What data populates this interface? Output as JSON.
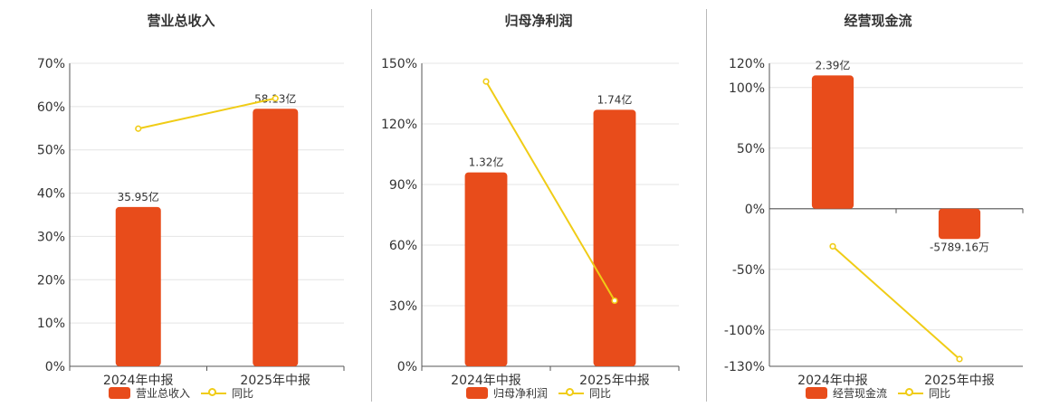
{
  "colors": {
    "bar": "#e84c1b",
    "line": "#f0cc16",
    "axis": "#555555",
    "grid": "#e4e4e4",
    "text": "#333333"
  },
  "legend": {
    "line_label": "同比"
  },
  "chart_data": [
    {
      "type": "bar",
      "title": "营业总收入",
      "categories": [
        "2024年中报",
        "2025年中报"
      ],
      "bar_values": [
        36.8,
        59.5
      ],
      "bar_labels": [
        "35.95亿",
        "58.13亿"
      ],
      "line_values": [
        54.9,
        61.9
      ],
      "ylim": [
        0,
        70
      ],
      "yticks": [
        0,
        10,
        20,
        30,
        40,
        50,
        60,
        70
      ],
      "ytick_labels": [
        "0%",
        "10%",
        "20%",
        "30%",
        "40%",
        "50%",
        "60%",
        "70%"
      ],
      "series": [
        {
          "name": "营业总收入",
          "kind": "bar"
        },
        {
          "name": "同比",
          "kind": "line"
        }
      ]
    },
    {
      "type": "bar",
      "title": "归母净利润",
      "categories": [
        "2024年中报",
        "2025年中报"
      ],
      "bar_values": [
        96,
        127
      ],
      "bar_labels": [
        "1.32亿",
        "1.74亿"
      ],
      "line_values": [
        141,
        32.5
      ],
      "ylim": [
        0,
        150
      ],
      "yticks": [
        0,
        30,
        60,
        90,
        120,
        150
      ],
      "ytick_labels": [
        "0%",
        "30%",
        "60%",
        "90%",
        "120%",
        "150%"
      ],
      "series": [
        {
          "name": "归母净利润",
          "kind": "bar"
        },
        {
          "name": "同比",
          "kind": "line"
        }
      ]
    },
    {
      "type": "bar",
      "title": "经营现金流",
      "categories": [
        "2024年中报",
        "2025年中报"
      ],
      "bar_values": [
        110,
        -25
      ],
      "bar_labels": [
        "2.39亿",
        "-5789.16万"
      ],
      "line_values": [
        -31,
        -124
      ],
      "ylim": [
        -130,
        120
      ],
      "yticks": [
        -130,
        -100,
        -50,
        0,
        50,
        100,
        120
      ],
      "ytick_labels": [
        "-130%",
        "-100%",
        "-50%",
        "0%",
        "50%",
        "100%",
        "120%"
      ],
      "series": [
        {
          "name": "经营现金流",
          "kind": "bar"
        },
        {
          "name": "同比",
          "kind": "line"
        }
      ]
    }
  ]
}
